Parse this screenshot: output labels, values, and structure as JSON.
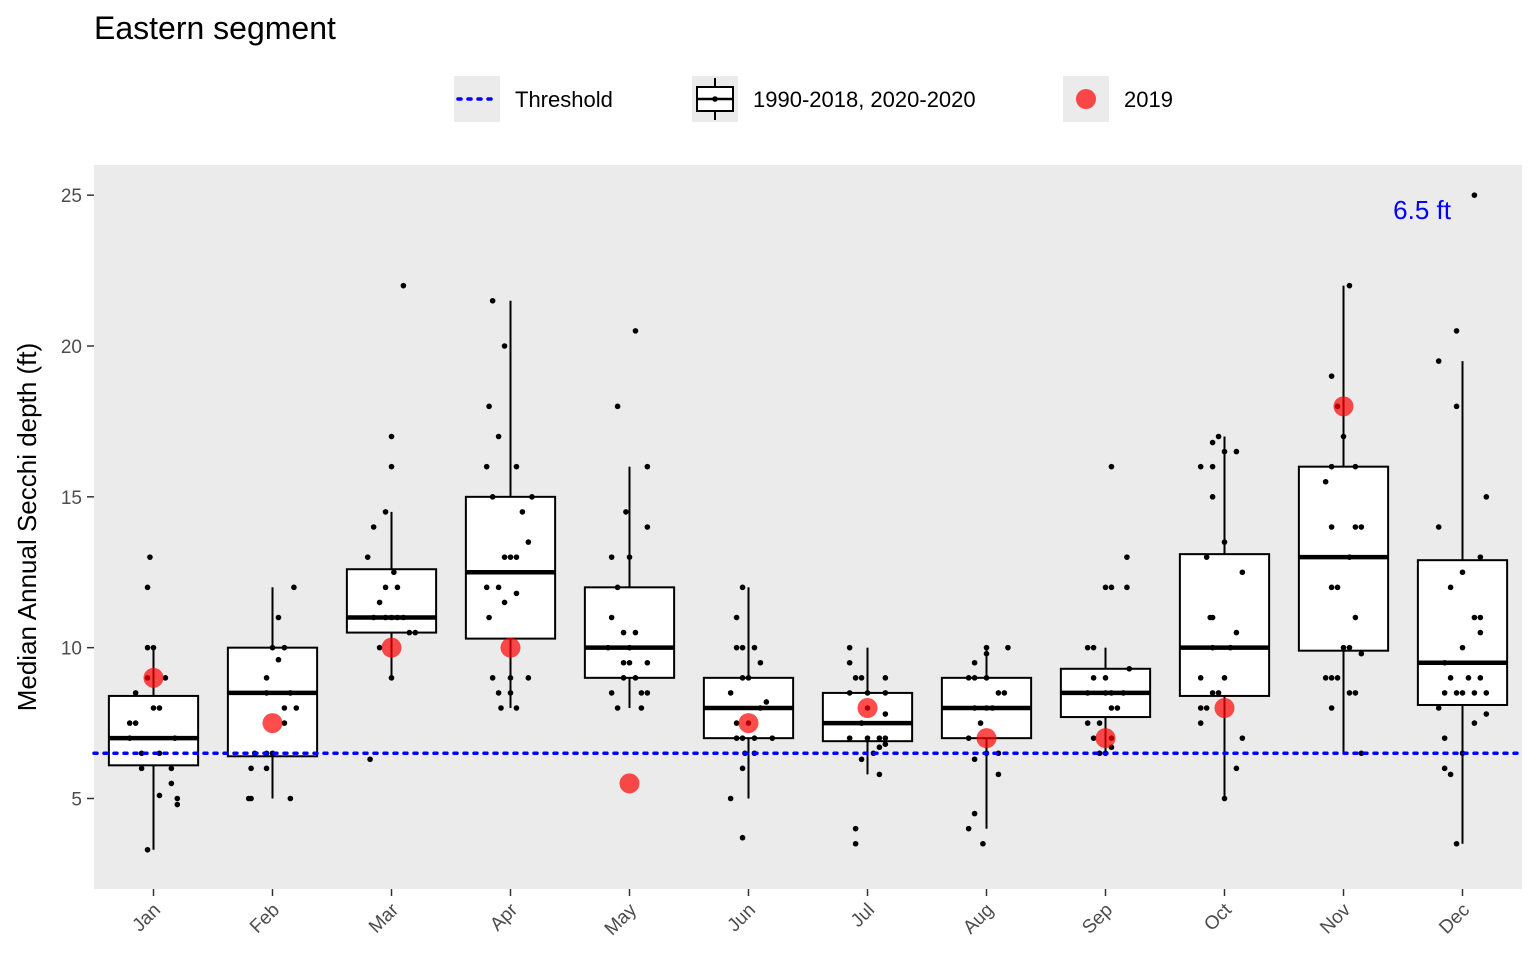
{
  "chart_data": {
    "type": "box",
    "title": "Eastern segment",
    "ylabel": "Median Annual Secchi depth (ft)",
    "xlabel": "",
    "ylim": [
      2,
      26
    ],
    "yticks": [
      5,
      10,
      15,
      20,
      25
    ],
    "grid": false,
    "legend_position": "top",
    "legend": [
      {
        "key": "threshold",
        "label": "Threshold"
      },
      {
        "key": "box",
        "label": "1990-2018, 2020-2020"
      },
      {
        "key": "highlight",
        "label": "2019"
      }
    ],
    "threshold": {
      "value": 6.5,
      "label": "6.5 ft",
      "color": "#0000ff"
    },
    "highlight_color": "#ff0000",
    "categories": [
      "Jan",
      "Feb",
      "Mar",
      "Apr",
      "May",
      "Jun",
      "Jul",
      "Aug",
      "Sep",
      "Oct",
      "Nov",
      "Dec"
    ],
    "boxes": [
      {
        "min": 3.3,
        "q1": 6.1,
        "median": 7.0,
        "q3": 8.4,
        "max": 10.0
      },
      {
        "min": 5.0,
        "q1": 6.4,
        "median": 8.5,
        "q3": 10.0,
        "max": 12.0
      },
      {
        "min": 9.0,
        "q1": 10.5,
        "median": 11.0,
        "q3": 12.6,
        "max": 14.5
      },
      {
        "min": 8.0,
        "q1": 10.3,
        "median": 12.5,
        "q3": 15.0,
        "max": 21.5
      },
      {
        "min": 8.0,
        "q1": 9.0,
        "median": 10.0,
        "q3": 12.0,
        "max": 16.0
      },
      {
        "min": 5.0,
        "q1": 7.0,
        "median": 8.0,
        "q3": 9.0,
        "max": 12.0
      },
      {
        "min": 5.8,
        "q1": 6.9,
        "median": 7.5,
        "q3": 8.5,
        "max": 10.0
      },
      {
        "min": 4.0,
        "q1": 7.0,
        "median": 8.0,
        "q3": 9.0,
        "max": 10.0
      },
      {
        "min": 6.5,
        "q1": 7.7,
        "median": 8.5,
        "q3": 9.3,
        "max": 10.0
      },
      {
        "min": 5.0,
        "q1": 8.4,
        "median": 10.0,
        "q3": 13.1,
        "max": 17.0
      },
      {
        "min": 6.5,
        "q1": 9.9,
        "median": 13.0,
        "q3": 16.0,
        "max": 22.0
      },
      {
        "min": 3.5,
        "q1": 8.1,
        "median": 9.5,
        "q3": 12.9,
        "max": 19.5
      }
    ],
    "highlight_2019": [
      9.0,
      7.5,
      10.0,
      10.0,
      5.5,
      7.5,
      8.0,
      7.0,
      7.0,
      8.0,
      18.0,
      null
    ],
    "points": [
      [
        [
          -0.05,
          3.3
        ],
        [
          -0.1,
          6.0
        ],
        [
          0.15,
          6.0
        ],
        [
          0.2,
          5.0
        ],
        [
          0.2,
          4.8
        ],
        [
          0.05,
          5.1
        ],
        [
          0.15,
          5.5
        ],
        [
          -0.1,
          6.5
        ],
        [
          0.05,
          6.5
        ],
        [
          -0.2,
          7.5
        ],
        [
          -0.15,
          7.5
        ],
        [
          0.0,
          8.0
        ],
        [
          0.05,
          8.0
        ],
        [
          -0.15,
          8.5
        ],
        [
          -0.05,
          9.0
        ],
        [
          0.1,
          9.0
        ],
        [
          -0.05,
          10.0
        ],
        [
          0.0,
          10.0
        ],
        [
          -0.05,
          12.0
        ],
        [
          -0.03,
          13.0
        ],
        [
          0.18,
          7.0
        ],
        [
          -0.2,
          7.0
        ]
      ],
      [
        [
          -0.15,
          6.5
        ],
        [
          -0.2,
          5.0
        ],
        [
          -0.18,
          5.0
        ],
        [
          0.15,
          5.0
        ],
        [
          -0.05,
          6.0
        ],
        [
          -0.18,
          6.0
        ],
        [
          -0.05,
          6.5
        ],
        [
          0.0,
          6.5
        ],
        [
          0.1,
          7.5
        ],
        [
          0.2,
          8.0
        ],
        [
          0.1,
          8.0
        ],
        [
          -0.05,
          8.5
        ],
        [
          0.15,
          8.5
        ],
        [
          -0.05,
          9.0
        ],
        [
          0.05,
          9.6
        ],
        [
          0.0,
          10.0
        ],
        [
          0.1,
          10.0
        ],
        [
          0.05,
          11.0
        ],
        [
          0.18,
          12.0
        ]
      ],
      [
        [
          -0.18,
          6.3
        ],
        [
          0.0,
          9.0
        ],
        [
          -0.1,
          10.0
        ],
        [
          0.15,
          10.5
        ],
        [
          0.2,
          10.5
        ],
        [
          -0.15,
          11.0
        ],
        [
          -0.05,
          11.0
        ],
        [
          0.0,
          11.0
        ],
        [
          0.05,
          11.0
        ],
        [
          0.1,
          11.0
        ],
        [
          -0.1,
          11.5
        ],
        [
          -0.05,
          12.0
        ],
        [
          0.05,
          12.0
        ],
        [
          0.02,
          12.5
        ],
        [
          -0.2,
          13.0
        ],
        [
          -0.15,
          14.0
        ],
        [
          -0.05,
          14.5
        ],
        [
          0.0,
          16.0
        ],
        [
          0.0,
          17.0
        ],
        [
          0.1,
          22.0
        ]
      ],
      [
        [
          -0.15,
          21.5
        ],
        [
          -0.05,
          20.0
        ],
        [
          -0.18,
          18.0
        ],
        [
          -0.1,
          17.0
        ],
        [
          -0.2,
          16.0
        ],
        [
          0.05,
          16.0
        ],
        [
          -0.15,
          15.0
        ],
        [
          0.18,
          15.0
        ],
        [
          0.1,
          14.5
        ],
        [
          0.15,
          13.5
        ],
        [
          -0.05,
          13.0
        ],
        [
          0.0,
          13.0
        ],
        [
          0.05,
          13.0
        ],
        [
          -0.2,
          12.0
        ],
        [
          -0.1,
          12.0
        ],
        [
          -0.05,
          11.5
        ],
        [
          0.05,
          11.8
        ],
        [
          -0.18,
          11.0
        ],
        [
          -0.15,
          9.0
        ],
        [
          0.0,
          9.0
        ],
        [
          0.15,
          9.0
        ],
        [
          -0.1,
          8.5
        ],
        [
          0.0,
          8.5
        ],
        [
          -0.08,
          8.0
        ],
        [
          0.05,
          8.0
        ]
      ],
      [
        [
          0.05,
          20.5
        ],
        [
          -0.1,
          18.0
        ],
        [
          0.15,
          16.0
        ],
        [
          -0.03,
          14.5
        ],
        [
          0.15,
          14.0
        ],
        [
          -0.15,
          13.0
        ],
        [
          0.0,
          13.0
        ],
        [
          -0.1,
          12.0
        ],
        [
          -0.15,
          11.0
        ],
        [
          -0.05,
          10.5
        ],
        [
          0.05,
          10.5
        ],
        [
          -0.18,
          10.0
        ],
        [
          0.0,
          10.0
        ],
        [
          -0.05,
          9.5
        ],
        [
          0.0,
          9.5
        ],
        [
          0.15,
          9.5
        ],
        [
          -0.05,
          9.0
        ],
        [
          0.05,
          9.0
        ],
        [
          -0.15,
          8.5
        ],
        [
          0.1,
          8.5
        ],
        [
          0.15,
          8.5
        ],
        [
          -0.1,
          8.0
        ],
        [
          0.1,
          8.0
        ]
      ],
      [
        [
          -0.05,
          3.7
        ],
        [
          -0.15,
          5.0
        ],
        [
          -0.05,
          6.0
        ],
        [
          -0.03,
          6.5
        ],
        [
          0.05,
          6.5
        ],
        [
          -0.1,
          7.0
        ],
        [
          -0.05,
          7.0
        ],
        [
          0.05,
          7.0
        ],
        [
          0.2,
          7.0
        ],
        [
          -0.1,
          7.5
        ],
        [
          0.0,
          7.5
        ],
        [
          0.1,
          8.0
        ],
        [
          0.15,
          8.2
        ],
        [
          -0.15,
          8.5
        ],
        [
          -0.05,
          9.0
        ],
        [
          0.0,
          9.0
        ],
        [
          0.1,
          9.5
        ],
        [
          -0.1,
          10.0
        ],
        [
          -0.05,
          10.0
        ],
        [
          0.05,
          10.0
        ],
        [
          -0.1,
          11.0
        ],
        [
          -0.05,
          12.0
        ]
      ],
      [
        [
          -0.1,
          3.5
        ],
        [
          -0.1,
          4.0
        ],
        [
          0.1,
          5.8
        ],
        [
          -0.05,
          6.3
        ],
        [
          0.05,
          6.5
        ],
        [
          0.1,
          6.7
        ],
        [
          0.15,
          6.8
        ],
        [
          0.15,
          7.0
        ],
        [
          -0.15,
          7.0
        ],
        [
          0.0,
          7.0
        ],
        [
          0.1,
          7.0
        ],
        [
          -0.05,
          7.5
        ],
        [
          0.15,
          7.8
        ],
        [
          0.0,
          8.0
        ],
        [
          -0.15,
          8.5
        ],
        [
          0.0,
          8.5
        ],
        [
          0.15,
          8.5
        ],
        [
          -0.1,
          9.0
        ],
        [
          -0.05,
          9.0
        ],
        [
          0.15,
          9.0
        ],
        [
          -0.15,
          9.5
        ],
        [
          -0.15,
          10.0
        ]
      ],
      [
        [
          -0.03,
          3.5
        ],
        [
          -0.15,
          4.0
        ],
        [
          -0.1,
          4.5
        ],
        [
          0.1,
          5.8
        ],
        [
          -0.1,
          6.3
        ],
        [
          0.0,
          6.5
        ],
        [
          0.1,
          6.5
        ],
        [
          -0.15,
          7.0
        ],
        [
          -0.05,
          7.5
        ],
        [
          0.0,
          8.0
        ],
        [
          0.05,
          8.0
        ],
        [
          -0.1,
          8.0
        ],
        [
          0.1,
          8.5
        ],
        [
          0.15,
          8.5
        ],
        [
          -0.15,
          9.0
        ],
        [
          -0.1,
          9.0
        ],
        [
          0.0,
          9.0
        ],
        [
          -0.1,
          9.5
        ],
        [
          0.0,
          9.8
        ],
        [
          0.0,
          10.0
        ],
        [
          0.18,
          10.0
        ]
      ],
      [
        [
          -0.05,
          6.5
        ],
        [
          0.0,
          6.5
        ],
        [
          0.05,
          6.7
        ],
        [
          -0.1,
          7.0
        ],
        [
          0.05,
          7.0
        ],
        [
          -0.15,
          7.5
        ],
        [
          -0.05,
          7.5
        ],
        [
          0.05,
          8.0
        ],
        [
          0.1,
          8.0
        ],
        [
          -0.15,
          8.5
        ],
        [
          0.0,
          8.5
        ],
        [
          0.05,
          8.5
        ],
        [
          0.15,
          8.5
        ],
        [
          -0.1,
          9.0
        ],
        [
          0.0,
          9.0
        ],
        [
          0.2,
          9.3
        ],
        [
          -0.15,
          10.0
        ],
        [
          -0.1,
          10.0
        ],
        [
          0.0,
          12.0
        ],
        [
          0.05,
          12.0
        ],
        [
          0.18,
          12.0
        ],
        [
          0.18,
          13.0
        ],
        [
          0.05,
          16.0
        ]
      ],
      [
        [
          0.0,
          5.0
        ],
        [
          0.1,
          6.0
        ],
        [
          0.15,
          7.0
        ],
        [
          -0.2,
          7.5
        ],
        [
          -0.15,
          8.0
        ],
        [
          -0.2,
          8.0
        ],
        [
          -0.1,
          8.5
        ],
        [
          -0.05,
          8.5
        ],
        [
          0.0,
          9.0
        ],
        [
          -0.2,
          9.0
        ],
        [
          -0.1,
          10.0
        ],
        [
          0.05,
          10.0
        ],
        [
          0.1,
          10.5
        ],
        [
          -0.12,
          11.0
        ],
        [
          -0.1,
          11.0
        ],
        [
          0.15,
          12.5
        ],
        [
          0.0,
          13.5
        ],
        [
          -0.15,
          13.0
        ],
        [
          -0.1,
          15.0
        ],
        [
          -0.2,
          16.0
        ],
        [
          -0.1,
          16.0
        ],
        [
          -0.1,
          16.8
        ],
        [
          -0.05,
          17.0
        ],
        [
          0.0,
          16.5
        ],
        [
          0.1,
          16.5
        ]
      ],
      [
        [
          0.15,
          6.5
        ],
        [
          -0.1,
          8.0
        ],
        [
          -0.1,
          9.0
        ],
        [
          -0.15,
          9.0
        ],
        [
          -0.05,
          9.0
        ],
        [
          0.05,
          10.0
        ],
        [
          0.15,
          9.8
        ],
        [
          0.0,
          10.0
        ],
        [
          0.05,
          8.5
        ],
        [
          0.1,
          8.5
        ],
        [
          0.1,
          11.0
        ],
        [
          -0.1,
          12.0
        ],
        [
          -0.05,
          12.0
        ],
        [
          0.05,
          13.0
        ],
        [
          0.1,
          14.0
        ],
        [
          -0.1,
          14.0
        ],
        [
          0.15,
          14.0
        ],
        [
          -0.15,
          15.5
        ],
        [
          -0.1,
          16.0
        ],
        [
          0.1,
          16.0
        ],
        [
          0.0,
          17.0
        ],
        [
          -0.05,
          18.0
        ],
        [
          -0.1,
          19.0
        ],
        [
          0.05,
          22.0
        ]
      ],
      [
        [
          -0.05,
          3.5
        ],
        [
          -0.1,
          5.8
        ],
        [
          -0.15,
          6.0
        ],
        [
          0.0,
          6.5
        ],
        [
          -0.15,
          7.0
        ],
        [
          0.1,
          7.5
        ],
        [
          0.2,
          7.8
        ],
        [
          -0.2,
          8.0
        ],
        [
          -0.15,
          8.5
        ],
        [
          -0.05,
          8.5
        ],
        [
          0.0,
          8.5
        ],
        [
          0.1,
          8.5
        ],
        [
          0.2,
          8.5
        ],
        [
          -0.1,
          9.0
        ],
        [
          0.05,
          9.0
        ],
        [
          0.15,
          9.0
        ],
        [
          -0.15,
          9.5
        ],
        [
          0.0,
          10.0
        ],
        [
          0.15,
          10.5
        ],
        [
          0.1,
          11.0
        ],
        [
          0.15,
          11.0
        ],
        [
          -0.1,
          12.0
        ],
        [
          0.0,
          12.5
        ],
        [
          0.15,
          13.0
        ],
        [
          0.2,
          15.0
        ],
        [
          -0.2,
          14.0
        ],
        [
          -0.05,
          18.0
        ],
        [
          -0.2,
          19.5
        ],
        [
          -0.05,
          20.5
        ],
        [
          0.1,
          25.0
        ]
      ]
    ]
  }
}
